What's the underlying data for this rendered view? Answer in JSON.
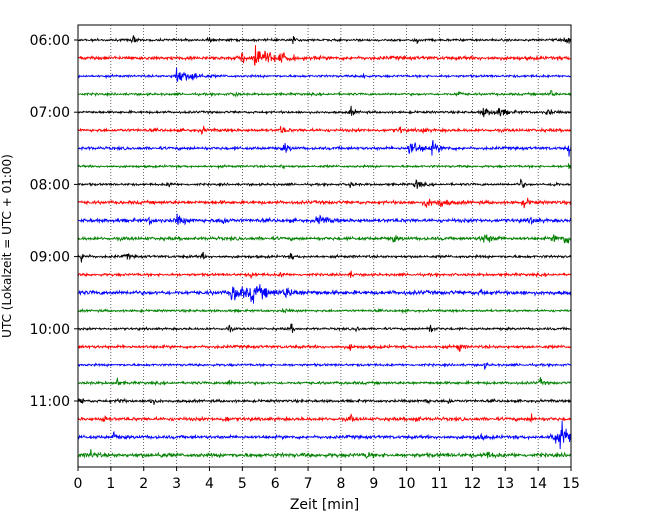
{
  "chart_data": {
    "type": "line",
    "subtype": "helicorder-seismogram",
    "xlabel": "Zeit  [min]",
    "ylabel": "UTC (Lokalzeit = UTC + 01:00)",
    "xlim": [
      0,
      15
    ],
    "x_ticks": [
      "0",
      "1",
      "2",
      "3",
      "4",
      "5",
      "6",
      "7",
      "8",
      "9",
      "10",
      "11",
      "12",
      "13",
      "14",
      "15"
    ],
    "y_ticks": [
      {
        "label": "06:00",
        "trace_index": 0
      },
      {
        "label": "07:00",
        "trace_index": 4
      },
      {
        "label": "08:00",
        "trace_index": 8
      },
      {
        "label": "09:00",
        "trace_index": 12
      },
      {
        "label": "10:00",
        "trace_index": 16
      },
      {
        "label": "11:00",
        "trace_index": 20
      }
    ],
    "trace_minutes": 15,
    "trace_color_cycle": [
      "#000000",
      "#ff0000",
      "#0000ff",
      "#008000"
    ],
    "grid": "vertical dotted at each minute",
    "traces": [
      {
        "start": "06:00",
        "noise": 0.35,
        "events": [
          [
            1.7,
            1.7,
            0.05
          ],
          [
            6.55,
            1.6,
            0.05
          ],
          [
            10.3,
            1.5,
            0.05
          ],
          [
            14.9,
            1.9,
            0.05
          ],
          [
            4.0,
            0.8,
            0.05
          ]
        ]
      },
      {
        "start": "06:15",
        "noise": 0.55,
        "events": [
          [
            5.4,
            4.2,
            0.35
          ],
          [
            5.0,
            1.5,
            0.2
          ],
          [
            6.2,
            1.2,
            0.2
          ]
        ]
      },
      {
        "start": "06:30",
        "noise": 0.35,
        "events": [
          [
            3.0,
            3.2,
            0.25
          ],
          [
            3.5,
            1.2,
            0.2
          ],
          [
            8.7,
            1.0,
            0.05
          ]
        ]
      },
      {
        "start": "06:45",
        "noise": 0.35,
        "events": [
          [
            4.8,
            1.2,
            0.05
          ],
          [
            11.6,
            1.4,
            0.05
          ],
          [
            14.4,
            1.5,
            0.05
          ]
        ]
      },
      {
        "start": "07:00",
        "noise": 0.35,
        "events": [
          [
            8.3,
            1.4,
            0.1
          ],
          [
            12.3,
            1.6,
            0.3
          ],
          [
            12.8,
            1.2,
            0.2
          ],
          [
            14.3,
            1.2,
            0.1
          ]
        ]
      },
      {
        "start": "07:15",
        "noise": 0.45,
        "events": [
          [
            3.8,
            1.0,
            0.05
          ],
          [
            6.2,
            1.3,
            0.1
          ],
          [
            9.8,
            1.2,
            0.05
          ],
          [
            10.5,
            1.6,
            0.05
          ]
        ]
      },
      {
        "start": "07:30",
        "noise": 0.45,
        "events": [
          [
            6.3,
            1.6,
            0.1
          ],
          [
            10.1,
            2.6,
            0.3
          ],
          [
            10.8,
            1.4,
            0.2
          ],
          [
            14.95,
            2.4,
            0.05
          ]
        ]
      },
      {
        "start": "07:45",
        "noise": 0.35,
        "events": [
          [
            14.95,
            1.8,
            0.05
          ],
          [
            6.2,
            0.8,
            0.05
          ]
        ]
      },
      {
        "start": "08:00",
        "noise": 0.35,
        "events": [
          [
            2.8,
            1.3,
            0.05
          ],
          [
            8.3,
            1.2,
            0.05
          ],
          [
            10.3,
            2.0,
            0.1
          ],
          [
            13.5,
            2.0,
            0.05
          ],
          [
            14.5,
            1.6,
            0.05
          ]
        ]
      },
      {
        "start": "08:15",
        "noise": 0.5,
        "events": [
          [
            10.6,
            1.4,
            0.2
          ],
          [
            11.0,
            1.4,
            0.2
          ],
          [
            13.6,
            1.6,
            0.1
          ]
        ]
      },
      {
        "start": "08:30",
        "noise": 0.55,
        "events": [
          [
            3.0,
            1.6,
            0.2
          ],
          [
            4.4,
            1.5,
            0.1
          ],
          [
            7.3,
            1.8,
            0.2
          ],
          [
            13.8,
            1.2,
            0.1
          ],
          [
            2.2,
            1.2,
            0.05
          ]
        ]
      },
      {
        "start": "08:45",
        "noise": 0.5,
        "events": [
          [
            9.6,
            1.0,
            0.1
          ],
          [
            12.3,
            1.8,
            0.25
          ],
          [
            14.8,
            1.8,
            0.2
          ],
          [
            14.5,
            1.4,
            0.1
          ]
        ]
      },
      {
        "start": "09:00",
        "noise": 0.4,
        "events": [
          [
            0.1,
            2.0,
            0.1
          ],
          [
            1.5,
            1.3,
            0.05
          ],
          [
            3.8,
            1.0,
            0.05
          ],
          [
            6.5,
            1.0,
            0.05
          ]
        ]
      },
      {
        "start": "09:15",
        "noise": 0.4,
        "events": [
          [
            6.2,
            1.1,
            0.05
          ],
          [
            8.3,
            1.1,
            0.05
          ],
          [
            5.3,
            1.0,
            0.05
          ]
        ]
      },
      {
        "start": "09:30",
        "noise": 0.6,
        "events": [
          [
            4.7,
            2.4,
            0.5
          ],
          [
            5.3,
            2.0,
            0.4
          ],
          [
            6.3,
            1.2,
            0.3
          ],
          [
            12.3,
            1.2,
            0.05
          ]
        ]
      },
      {
        "start": "09:45",
        "noise": 0.35,
        "events": [
          [
            6.3,
            0.9,
            0.05
          ]
        ]
      },
      {
        "start": "10:00",
        "noise": 0.35,
        "events": [
          [
            4.6,
            1.3,
            0.05
          ],
          [
            6.5,
            1.4,
            0.05
          ],
          [
            10.7,
            1.6,
            0.1
          ],
          [
            8.5,
            0.9,
            0.05
          ]
        ]
      },
      {
        "start": "10:15",
        "noise": 0.45,
        "events": [
          [
            11.6,
            2.0,
            0.05
          ],
          [
            8.3,
            0.9,
            0.05
          ]
        ]
      },
      {
        "start": "10:30",
        "noise": 0.35,
        "events": [
          [
            12.4,
            0.9,
            0.05
          ]
        ]
      },
      {
        "start": "10:45",
        "noise": 0.4,
        "events": [
          [
            1.2,
            1.4,
            0.05
          ],
          [
            14.1,
            1.3,
            0.05
          ],
          [
            4.6,
            1.0,
            0.05
          ]
        ]
      },
      {
        "start": "11:00",
        "noise": 0.4,
        "events": [
          [
            0.1,
            1.6,
            0.05
          ],
          [
            1.3,
            1.4,
            0.05
          ],
          [
            2.2,
            1.5,
            0.1
          ],
          [
            10.6,
            1.2,
            0.05
          ],
          [
            11.3,
            1.0,
            0.05
          ]
        ]
      },
      {
        "start": "11:15",
        "noise": 0.5,
        "events": [
          [
            0.8,
            1.6,
            0.05
          ],
          [
            4.5,
            1.6,
            0.05
          ],
          [
            8.3,
            1.4,
            0.05
          ],
          [
            10.3,
            1.5,
            0.05
          ],
          [
            13.8,
            1.2,
            0.05
          ]
        ]
      },
      {
        "start": "11:30",
        "noise": 0.5,
        "events": [
          [
            1.1,
            1.6,
            0.05
          ],
          [
            12.2,
            1.1,
            0.1
          ],
          [
            14.7,
            3.2,
            0.4
          ],
          [
            14.4,
            1.5,
            0.3
          ]
        ]
      },
      {
        "start": "11:45",
        "noise": 0.6,
        "events": [
          [
            0.4,
            1.4,
            0.1
          ],
          [
            2.5,
            1.2,
            0.05
          ],
          [
            12.4,
            1.2,
            0.15
          ],
          [
            8.8,
            1.0,
            0.1
          ]
        ]
      }
    ]
  }
}
